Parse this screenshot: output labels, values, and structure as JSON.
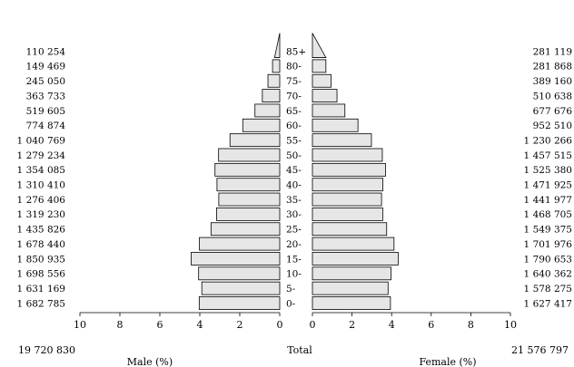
{
  "chart_data": {
    "type": "bar",
    "subtype": "population-pyramid",
    "categories": [
      "0-",
      "5-",
      "10-",
      "15-",
      "20-",
      "25-",
      "30-",
      "35-",
      "40-",
      "45-",
      "50-",
      "55-",
      "60-",
      "65-",
      "70-",
      "75-",
      "80-",
      "85+"
    ],
    "series": [
      {
        "name": "Male (%)",
        "side": "left",
        "counts": [
          "1 682 785",
          "1 631 169",
          "1 698 556",
          "1 850 935",
          "1 678 440",
          "1 435 826",
          "1 319 230",
          "1 276 406",
          "1 310 410",
          "1 354 085",
          "1 279 234",
          "1 040 769",
          "774 874",
          "519 605",
          "363 733",
          "245 050",
          "149 469",
          "110 254"
        ],
        "values": [
          4.03,
          3.9,
          4.06,
          4.43,
          4.02,
          3.44,
          3.16,
          3.05,
          3.14,
          3.24,
          3.06,
          2.49,
          1.85,
          1.24,
          0.87,
          0.59,
          0.36,
          0.26
        ],
        "total": "19 720 830"
      },
      {
        "name": "Female (%)",
        "side": "right",
        "counts": [
          "1 627 417",
          "1 578 275",
          "1 640 362",
          "1 790 653",
          "1 701 976",
          "1 549 375",
          "1 468 705",
          "1 441 977",
          "1 471 925",
          "1 525 380",
          "1 457 515",
          "1 230 266",
          "952 510",
          "677 676",
          "510 638",
          "389 160",
          "281 868",
          "281 119"
        ],
        "values": [
          3.94,
          3.82,
          3.97,
          4.33,
          4.12,
          3.75,
          3.55,
          3.49,
          3.56,
          3.69,
          3.53,
          2.98,
          2.3,
          1.64,
          1.24,
          0.94,
          0.68,
          0.68
        ],
        "total": "21 576 797"
      }
    ],
    "total_label": "Total",
    "x_ticks": [
      10,
      8,
      6,
      4,
      2,
      0
    ],
    "xlim": [
      0,
      10
    ],
    "xlabel_left": "Male (%)",
    "xlabel_right": "Female (%)",
    "grid": false
  }
}
